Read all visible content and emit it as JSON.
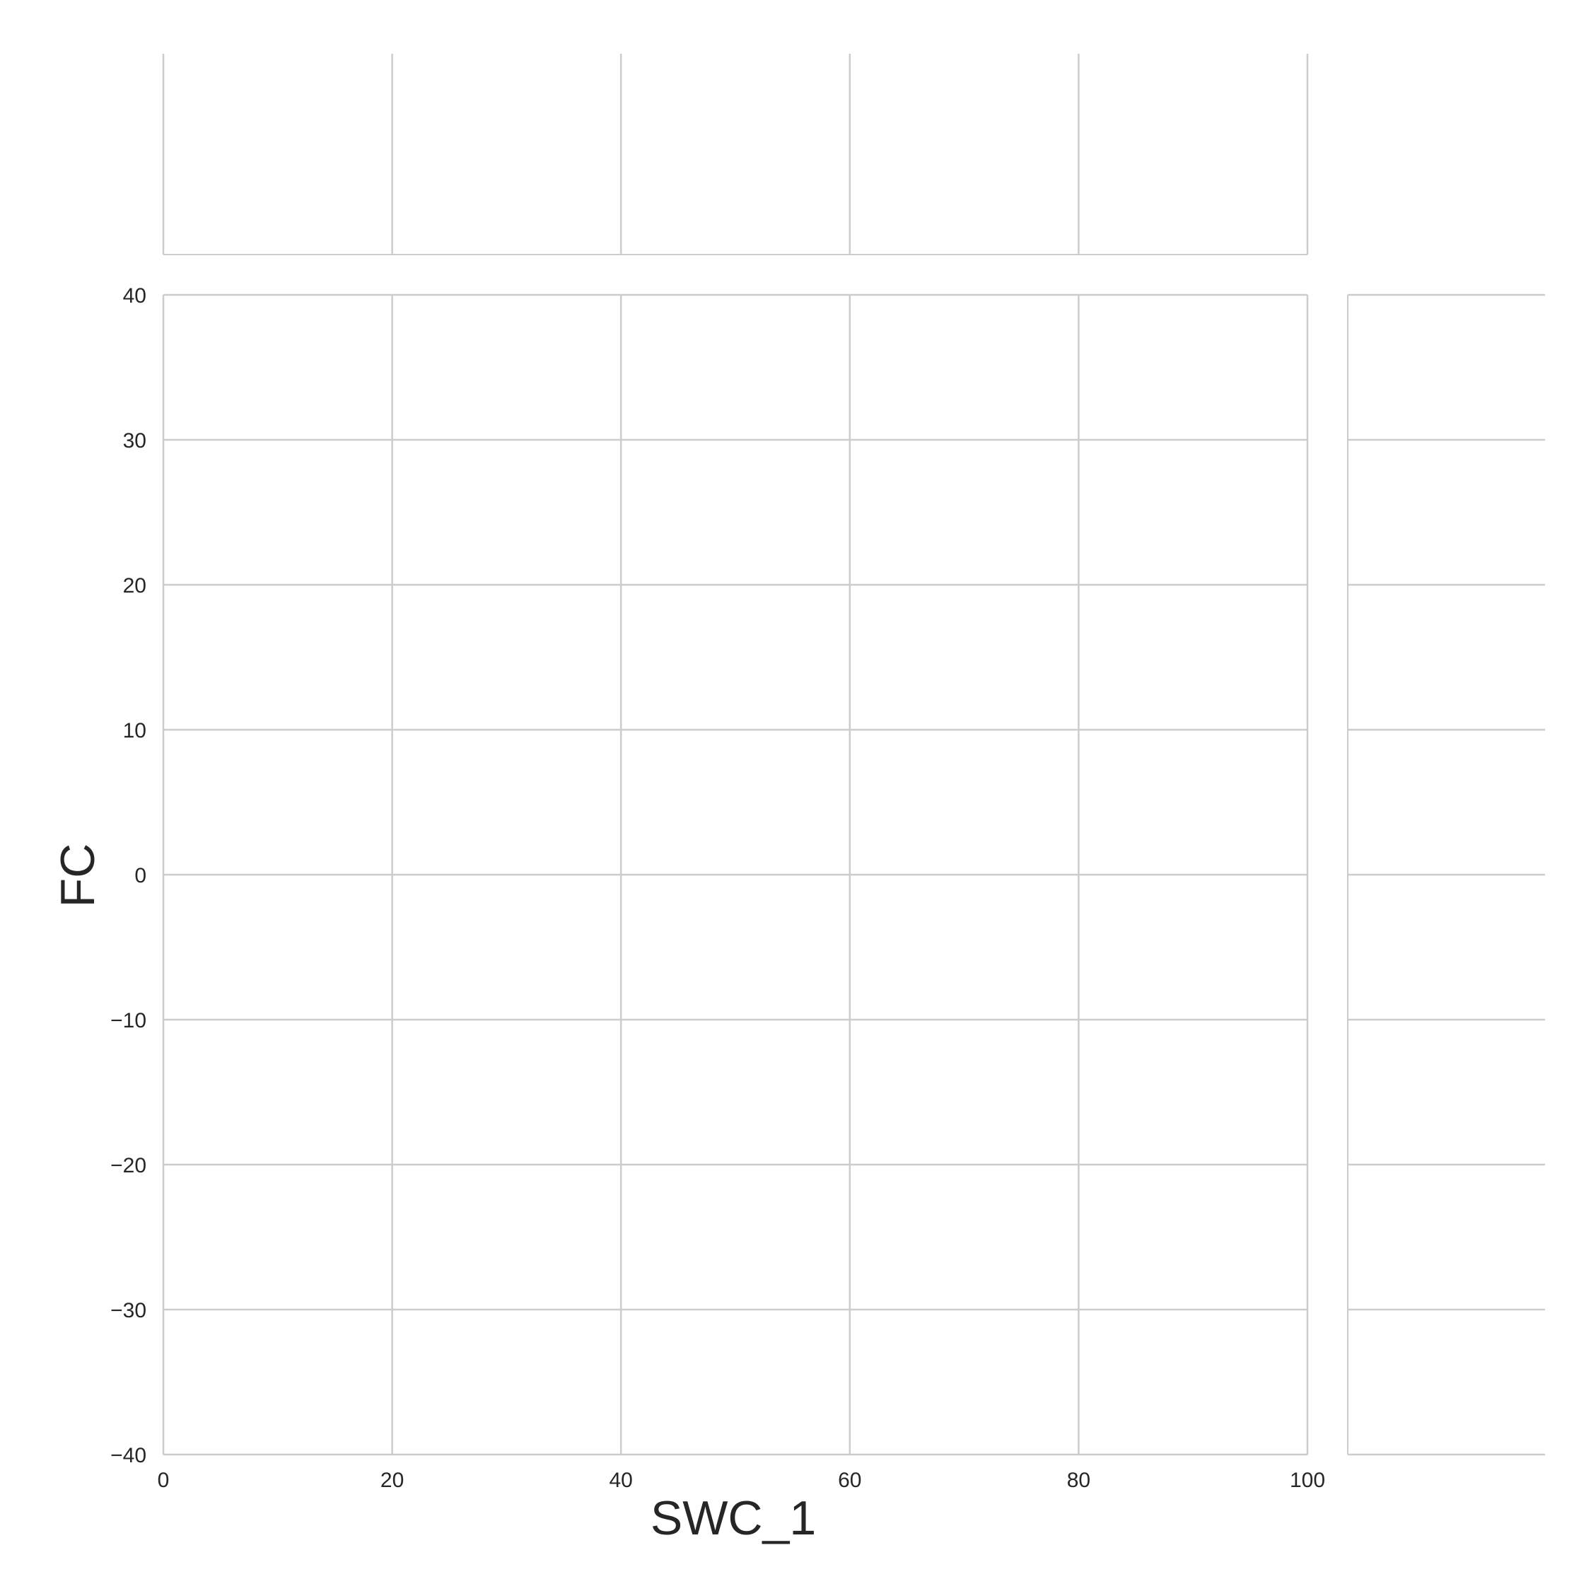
{
  "chart_data": {
    "type": "scatter",
    "title": "",
    "xlabel": "SWC_1",
    "ylabel": "FC",
    "xlim": [
      0,
      100
    ],
    "ylim": [
      -40,
      40
    ],
    "x_ticks": [
      0,
      20,
      40,
      60,
      80,
      100
    ],
    "y_ticks": [
      -40,
      -30,
      -20,
      -10,
      0,
      10,
      20,
      30,
      40
    ],
    "x_tick_labels": [
      "0",
      "20",
      "40",
      "60",
      "80",
      "100"
    ],
    "y_tick_labels": [
      "−40",
      "−30",
      "−20",
      "−10",
      "0",
      "10",
      "20",
      "30",
      "40"
    ],
    "points": [],
    "grid": true,
    "marginal_x": "histogram (empty)",
    "marginal_y": "histogram (empty)",
    "colors": {
      "grid": "#cccccc",
      "text": "#262626",
      "background": "#ffffff"
    }
  }
}
